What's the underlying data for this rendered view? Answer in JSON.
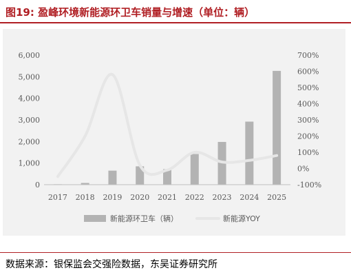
{
  "figure": {
    "title": "图19:  盈峰环境新能源环卫车销量与增速（单位：辆）",
    "source": "数据来源：银保监会交强险数据，东吴证券研究所"
  },
  "colors": {
    "title": "#b01e23",
    "bar": "#b3b3b3",
    "line": "#e6e6e6",
    "background": "#f2f2f2",
    "axis_text": "#595959"
  },
  "chart_data": {
    "type": "bar",
    "categories": [
      "2017",
      "2018",
      "2019",
      "2020",
      "2021",
      "2022",
      "2023",
      "2024",
      "2025"
    ],
    "series": [
      {
        "name": "新能源环卫车（辆）",
        "type": "bar",
        "axis": "left",
        "values": [
          20,
          80,
          650,
          850,
          720,
          1420,
          1980,
          2920,
          5270
        ]
      },
      {
        "name": "新能源YOY",
        "type": "line",
        "axis": "right",
        "smooth": true,
        "values": [
          -50,
          200,
          580,
          20,
          -10,
          100,
          40,
          50,
          80
        ]
      }
    ],
    "y_left": {
      "lim": [
        0,
        6000
      ],
      "ticks": [
        0,
        1000,
        2000,
        3000,
        4000,
        5000,
        6000
      ],
      "tick_labels": [
        "0",
        "1,000",
        "2,000",
        "3,000",
        "4,000",
        "5,000",
        "6,000"
      ]
    },
    "y_right": {
      "lim": [
        -100,
        700
      ],
      "ticks": [
        -100,
        0,
        100,
        200,
        300,
        400,
        500,
        600,
        700
      ],
      "tick_labels": [
        "-100%",
        "0%",
        "100%",
        "200%",
        "300%",
        "400%",
        "500%",
        "600%",
        "700%"
      ]
    },
    "legend": {
      "placement": "bottom",
      "items": [
        "新能源环卫车（辆）",
        "新能源YOY"
      ]
    },
    "grid": false
  }
}
